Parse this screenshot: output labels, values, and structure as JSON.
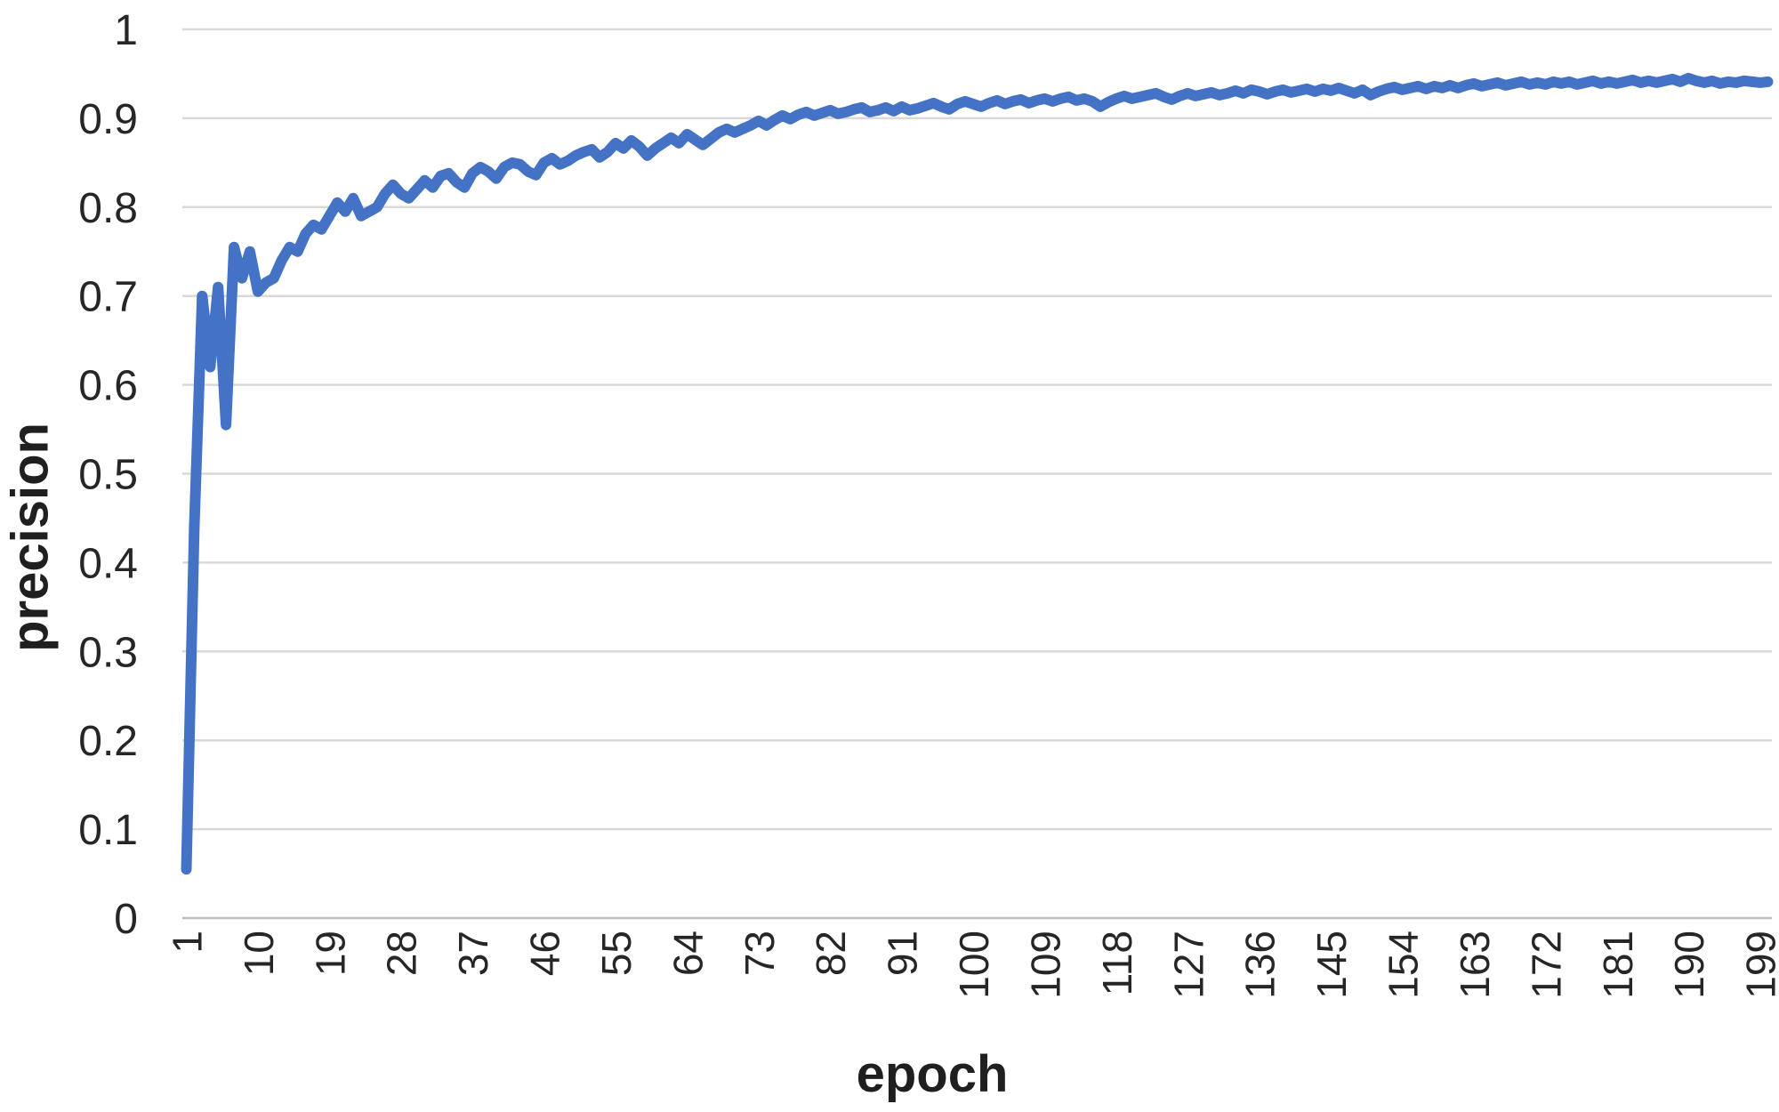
{
  "chart_data": {
    "type": "line",
    "title": "",
    "xlabel": "epoch",
    "ylabel": "precision",
    "legend": "none",
    "grid": "horizontal",
    "xlim": [
      1,
      200
    ],
    "ylim": [
      0,
      1
    ],
    "x_tick_labels": [
      1,
      10,
      19,
      28,
      37,
      46,
      55,
      64,
      73,
      82,
      91,
      100,
      109,
      118,
      127,
      136,
      145,
      154,
      163,
      172,
      181,
      190,
      199
    ],
    "y_ticks": [
      0,
      0.1,
      0.2,
      0.3,
      0.4,
      0.5,
      0.6,
      0.7,
      0.8,
      0.9,
      1
    ],
    "y_tick_labels": [
      "0",
      "0.1",
      "0.2",
      "0.3",
      "0.4",
      "0.5",
      "0.6",
      "0.7",
      "0.8",
      "0.9",
      "1"
    ],
    "line_color": "#4472C4",
    "gridline_color": "#D9D9D9",
    "axis_line_color": "#BFBFBF",
    "text_color": "#262626",
    "series": [
      {
        "name": "precision",
        "x_start": 1,
        "x_step": 1,
        "values": [
          0.055,
          0.44,
          0.7,
          0.62,
          0.71,
          0.555,
          0.755,
          0.72,
          0.75,
          0.705,
          0.715,
          0.72,
          0.74,
          0.755,
          0.75,
          0.77,
          0.78,
          0.775,
          0.79,
          0.805,
          0.795,
          0.81,
          0.79,
          0.795,
          0.8,
          0.815,
          0.825,
          0.815,
          0.81,
          0.82,
          0.83,
          0.822,
          0.835,
          0.838,
          0.828,
          0.822,
          0.838,
          0.845,
          0.84,
          0.832,
          0.845,
          0.85,
          0.848,
          0.84,
          0.836,
          0.85,
          0.855,
          0.848,
          0.852,
          0.858,
          0.862,
          0.865,
          0.856,
          0.862,
          0.872,
          0.866,
          0.875,
          0.868,
          0.858,
          0.866,
          0.872,
          0.878,
          0.872,
          0.882,
          0.876,
          0.87,
          0.877,
          0.884,
          0.888,
          0.884,
          0.888,
          0.892,
          0.897,
          0.892,
          0.898,
          0.903,
          0.899,
          0.904,
          0.907,
          0.903,
          0.906,
          0.909,
          0.905,
          0.907,
          0.91,
          0.912,
          0.907,
          0.909,
          0.912,
          0.908,
          0.913,
          0.909,
          0.911,
          0.914,
          0.917,
          0.913,
          0.91,
          0.916,
          0.919,
          0.916,
          0.913,
          0.917,
          0.92,
          0.916,
          0.919,
          0.921,
          0.917,
          0.92,
          0.922,
          0.919,
          0.922,
          0.924,
          0.92,
          0.922,
          0.919,
          0.913,
          0.918,
          0.922,
          0.925,
          0.922,
          0.924,
          0.926,
          0.928,
          0.924,
          0.921,
          0.925,
          0.928,
          0.925,
          0.927,
          0.929,
          0.926,
          0.928,
          0.931,
          0.928,
          0.932,
          0.93,
          0.927,
          0.93,
          0.932,
          0.929,
          0.931,
          0.933,
          0.93,
          0.933,
          0.931,
          0.934,
          0.931,
          0.928,
          0.932,
          0.926,
          0.93,
          0.933,
          0.935,
          0.932,
          0.934,
          0.936,
          0.933,
          0.936,
          0.934,
          0.937,
          0.934,
          0.937,
          0.939,
          0.936,
          0.938,
          0.94,
          0.937,
          0.939,
          0.941,
          0.938,
          0.94,
          0.938,
          0.941,
          0.939,
          0.941,
          0.938,
          0.94,
          0.942,
          0.939,
          0.941,
          0.939,
          0.941,
          0.943,
          0.94,
          0.942,
          0.94,
          0.942,
          0.944,
          0.941,
          0.945,
          0.942,
          0.94,
          0.942,
          0.939,
          0.941,
          0.94,
          0.942,
          0.941,
          0.94,
          0.941
        ]
      }
    ]
  }
}
